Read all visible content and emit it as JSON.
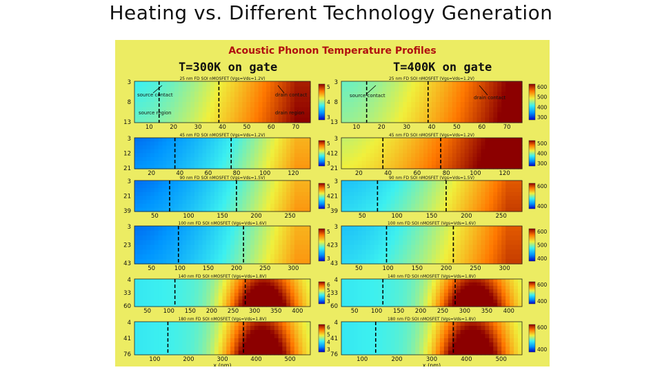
{
  "slide": {
    "title": "Heating vs. Different Technology Generation"
  },
  "chart_data": {
    "type": "heatmap",
    "title": "Acoustic Phonon Temperature Profiles",
    "xlabel": "x (nm)",
    "columns": [
      {
        "heading": "T=300K on gate",
        "colorbar_ticks": [
          "3",
          "4",
          "5"
        ]
      },
      {
        "heading": "T=400K on gate",
        "colorbar_ticks": [
          "300",
          "400",
          "500",
          "600"
        ]
      }
    ],
    "annotations": {
      "source_contact": "source contact",
      "drain_contact": "drain contact",
      "source_region": "source region",
      "drain_region": "drain region"
    },
    "panels": [
      {
        "title": "25 nm FD SOI nMOSFET (Vgs=Vds=1.2V)",
        "xticks": [
          "10",
          "20",
          "30",
          "40",
          "50",
          "60",
          "70"
        ],
        "yticks": [
          "3",
          "8",
          "13"
        ],
        "left_cbar": [
          "3",
          "4",
          "5"
        ],
        "right_cbar": [
          "300",
          "400",
          "500",
          "600"
        ]
      },
      {
        "title": "45 nm FD SOI nMOSFET (Vgs=Vds=1.2V)",
        "xticks": [
          "20",
          "40",
          "60",
          "80",
          "100",
          "120"
        ],
        "yticks": [
          "3",
          "12",
          "21"
        ],
        "left_cbar": [
          "3",
          "4",
          "5"
        ],
        "right_cbar": [
          "300",
          "400",
          "500"
        ]
      },
      {
        "title": "90 nm FD SOI nMOSFET (Vgs=Vds=1.5V)",
        "xticks": [
          "50",
          "100",
          "150",
          "200",
          "250"
        ],
        "yticks": [
          "3",
          "21",
          "39"
        ],
        "left_cbar": [
          "3",
          "4",
          "5"
        ],
        "right_cbar": [
          "400",
          "600"
        ]
      },
      {
        "title": "100 nm FD SOI nMOSFET (Vgs=Vds=1.6V)",
        "xticks": [
          "50",
          "100",
          "150",
          "200",
          "250",
          "300"
        ],
        "yticks": [
          "3",
          "23",
          "43"
        ],
        "left_cbar": [
          "3",
          "4",
          "5"
        ],
        "right_cbar": [
          "400",
          "500",
          "600"
        ]
      },
      {
        "title": "140 nm FD SOI nMOSFET (Vgs=Vds=1.8V)",
        "xticks": [
          "50",
          "100",
          "150",
          "200",
          "250",
          "300",
          "350",
          "400"
        ],
        "yticks": [
          "4",
          "33",
          "60"
        ],
        "left_cbar": [
          "3",
          "4",
          "5",
          "6"
        ],
        "right_cbar": [
          "400",
          "600"
        ]
      },
      {
        "title": "180 nm FD SOI nMOSFET (Vgs=Vds=1.8V)",
        "xticks": [
          "100",
          "200",
          "300",
          "400",
          "500"
        ],
        "yticks": [
          "4",
          "41",
          "76"
        ],
        "left_cbar": [
          "3",
          "4",
          "5",
          "6"
        ],
        "right_cbar": [
          "400",
          "600"
        ]
      }
    ]
  },
  "colors": {
    "background": "#ecec63",
    "text_red": "#b01010",
    "heading_black": "#111111"
  }
}
